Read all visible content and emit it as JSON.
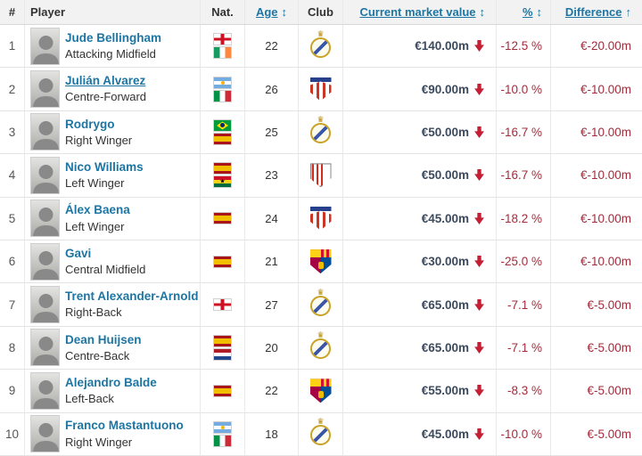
{
  "table": {
    "headers": {
      "rank": "#",
      "player": "Player",
      "nat": "Nat.",
      "age": "Age",
      "club": "Club",
      "value": "Current market value",
      "pct": "%",
      "diff": "Difference",
      "sort_both_glyph": "↕",
      "sort_asc_glyph": "↑"
    },
    "rows": [
      {
        "rank": "1",
        "name": "Jude Bellingham",
        "position": "Attacking Midfield",
        "flags": [
          "england",
          "ireland"
        ],
        "age": "22",
        "club": "real-madrid",
        "value": "€140.00m",
        "pct": "-12.5 %",
        "diff": "€-20.00m",
        "hovered": false
      },
      {
        "rank": "2",
        "name": "Julián Alvarez",
        "position": "Centre-Forward",
        "flags": [
          "argentina",
          "italy"
        ],
        "age": "26",
        "club": "atletico-madrid",
        "value": "€90.00m",
        "pct": "-10.0 %",
        "diff": "€-10.00m",
        "hovered": true
      },
      {
        "rank": "3",
        "name": "Rodrygo",
        "position": "Right Winger",
        "flags": [
          "brazil",
          "spain"
        ],
        "age": "25",
        "club": "real-madrid",
        "value": "€50.00m",
        "pct": "-16.7 %",
        "diff": "€-10.00m",
        "hovered": false
      },
      {
        "rank": "4",
        "name": "Nico Williams",
        "position": "Left Winger",
        "flags": [
          "spain",
          "ghana"
        ],
        "age": "23",
        "club": "athletic-bilbao",
        "value": "€50.00m",
        "pct": "-16.7 %",
        "diff": "€-10.00m",
        "hovered": false
      },
      {
        "rank": "5",
        "name": "Álex Baena",
        "position": "Left Winger",
        "flags": [
          "spain"
        ],
        "age": "24",
        "club": "atletico-madrid",
        "value": "€45.00m",
        "pct": "-18.2 %",
        "diff": "€-10.00m",
        "hovered": false
      },
      {
        "rank": "6",
        "name": "Gavi",
        "position": "Central Midfield",
        "flags": [
          "spain"
        ],
        "age": "21",
        "club": "barcelona",
        "value": "€30.00m",
        "pct": "-25.0 %",
        "diff": "€-10.00m",
        "hovered": false
      },
      {
        "rank": "7",
        "name": "Trent Alexander-Arnold",
        "position": "Right-Back",
        "flags": [
          "england"
        ],
        "age": "27",
        "club": "real-madrid",
        "value": "€65.00m",
        "pct": "-7.1 %",
        "diff": "€-5.00m",
        "hovered": false
      },
      {
        "rank": "8",
        "name": "Dean Huijsen",
        "position": "Centre-Back",
        "flags": [
          "spain",
          "netherlands"
        ],
        "age": "20",
        "club": "real-madrid",
        "value": "€65.00m",
        "pct": "-7.1 %",
        "diff": "€-5.00m",
        "hovered": false
      },
      {
        "rank": "9",
        "name": "Alejandro Balde",
        "position": "Left-Back",
        "flags": [
          "spain"
        ],
        "age": "22",
        "club": "barcelona",
        "value": "€55.00m",
        "pct": "-8.3 %",
        "diff": "€-5.00m",
        "hovered": false
      },
      {
        "rank": "10",
        "name": "Franco Mastantuono",
        "position": "Right Winger",
        "flags": [
          "argentina",
          "italy"
        ],
        "age": "18",
        "club": "real-madrid",
        "value": "€45.00m",
        "pct": "-10.0 %",
        "diff": "€-5.00m",
        "hovered": false
      }
    ]
  },
  "colors": {
    "link_blue": "#1d75a3",
    "value_dark": "#3c4a5e",
    "negative_red": "#a22c3c",
    "arrow_red": "#c41f35",
    "header_bg": "#f2f2f2"
  }
}
